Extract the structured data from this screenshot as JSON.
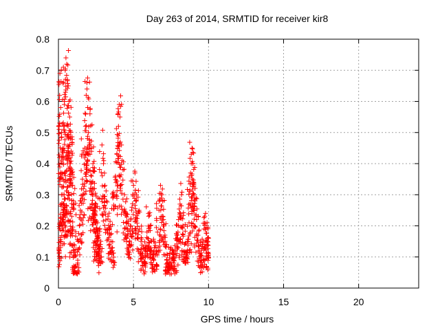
{
  "chart_data": {
    "type": "scatter",
    "title": "Day 263 of 2014, SRMTID for receiver kir8",
    "xlabel": "GPS time / hours",
    "ylabel": "SRMTID / TECUs",
    "xlim": [
      0,
      24
    ],
    "ylim": [
      0,
      0.8
    ],
    "xticks": [
      0,
      5,
      10,
      15,
      20
    ],
    "xtick_labels": [
      "0",
      "5",
      "10",
      "15",
      "20"
    ],
    "yticks": [
      0,
      0.1,
      0.2,
      0.3,
      0.4,
      0.5,
      0.6,
      0.7,
      0.8
    ],
    "ytick_labels": [
      "0",
      "0.1",
      "0.2",
      "0.3",
      "0.4",
      "0.5",
      "0.6",
      "0.7",
      "0.8"
    ],
    "grid": true,
    "marker": "+",
    "marker_color": "#ff0000",
    "x_data_range_note": "points span 0 to 10 hours",
    "series": [
      {
        "name": "SRMTID",
        "points": [
          [
            0.05,
            0.66
          ],
          [
            0.1,
            0.69
          ],
          [
            0.15,
            0.58
          ],
          [
            0.2,
            0.5
          ],
          [
            0.25,
            0.42
          ],
          [
            0.3,
            0.35
          ],
          [
            0.35,
            0.27
          ],
          [
            0.4,
            0.6
          ],
          [
            0.45,
            0.7
          ],
          [
            0.5,
            0.74
          ],
          [
            0.55,
            0.72
          ],
          [
            0.6,
            0.67
          ],
          [
            0.65,
            0.65
          ],
          [
            0.7,
            0.6
          ],
          [
            0.75,
            0.55
          ],
          [
            0.8,
            0.48
          ],
          [
            0.85,
            0.44
          ],
          [
            0.9,
            0.38
          ],
          [
            0.95,
            0.33
          ],
          [
            1.0,
            0.28
          ],
          [
            0.05,
            0.12
          ],
          [
            0.1,
            0.21
          ],
          [
            0.2,
            0.3
          ],
          [
            0.3,
            0.22
          ],
          [
            0.4,
            0.26
          ],
          [
            0.5,
            0.34
          ],
          [
            0.6,
            0.4
          ],
          [
            0.7,
            0.3
          ],
          [
            0.8,
            0.24
          ],
          [
            0.9,
            0.19
          ],
          [
            1.0,
            0.12
          ],
          [
            1.1,
            0.07
          ],
          [
            1.2,
            0.05
          ],
          [
            1.3,
            0.15
          ],
          [
            1.4,
            0.2
          ],
          [
            1.5,
            0.28
          ],
          [
            1.6,
            0.35
          ],
          [
            1.7,
            0.43
          ],
          [
            1.8,
            0.52
          ],
          [
            1.85,
            0.62
          ],
          [
            1.9,
            0.64
          ],
          [
            1.95,
            0.58
          ],
          [
            2.0,
            0.5
          ],
          [
            2.1,
            0.43
          ],
          [
            2.2,
            0.36
          ],
          [
            2.3,
            0.3
          ],
          [
            2.4,
            0.24
          ],
          [
            2.5,
            0.18
          ],
          [
            2.6,
            0.14
          ],
          [
            2.7,
            0.11
          ],
          [
            2.1,
            0.56
          ],
          [
            2.2,
            0.45
          ],
          [
            2.3,
            0.4
          ],
          [
            2.4,
            0.32
          ],
          [
            2.5,
            0.26
          ],
          [
            2.6,
            0.21
          ],
          [
            2.7,
            0.17
          ],
          [
            2.8,
            0.14
          ],
          [
            2.9,
            0.46
          ],
          [
            3.0,
            0.4
          ],
          [
            3.1,
            0.33
          ],
          [
            3.2,
            0.28
          ],
          [
            3.3,
            0.23
          ],
          [
            3.4,
            0.19
          ],
          [
            3.5,
            0.15
          ],
          [
            3.6,
            0.12
          ],
          [
            3.7,
            0.3
          ],
          [
            3.8,
            0.36
          ],
          [
            3.9,
            0.43
          ],
          [
            4.0,
            0.52
          ],
          [
            4.05,
            0.59
          ],
          [
            4.1,
            0.55
          ],
          [
            4.2,
            0.46
          ],
          [
            4.3,
            0.38
          ],
          [
            4.4,
            0.3
          ],
          [
            4.5,
            0.24
          ],
          [
            4.6,
            0.19
          ],
          [
            4.7,
            0.14
          ],
          [
            4.8,
            0.2
          ],
          [
            4.9,
            0.26
          ],
          [
            5.0,
            0.33
          ],
          [
            5.1,
            0.37
          ],
          [
            5.2,
            0.3
          ],
          [
            5.3,
            0.24
          ],
          [
            5.4,
            0.19
          ],
          [
            5.5,
            0.15
          ],
          [
            5.6,
            0.11
          ],
          [
            5.7,
            0.08
          ],
          [
            5.8,
            0.13
          ],
          [
            5.9,
            0.18
          ],
          [
            6.0,
            0.24
          ],
          [
            6.1,
            0.2
          ],
          [
            6.2,
            0.15
          ],
          [
            6.3,
            0.1
          ],
          [
            6.4,
            0.07
          ],
          [
            6.5,
            0.12
          ],
          [
            6.6,
            0.18
          ],
          [
            6.7,
            0.25
          ],
          [
            6.8,
            0.33
          ],
          [
            6.9,
            0.3
          ],
          [
            7.0,
            0.22
          ],
          [
            7.1,
            0.15
          ],
          [
            7.2,
            0.09
          ],
          [
            7.3,
            0.05
          ],
          [
            7.4,
            0.08
          ],
          [
            7.5,
            0.13
          ],
          [
            7.6,
            0.1
          ],
          [
            7.7,
            0.07
          ],
          [
            7.8,
            0.12
          ],
          [
            7.9,
            0.17
          ],
          [
            8.0,
            0.22
          ],
          [
            8.1,
            0.27
          ],
          [
            8.2,
            0.3
          ],
          [
            8.3,
            0.2
          ],
          [
            8.4,
            0.14
          ],
          [
            8.5,
            0.1
          ],
          [
            8.6,
            0.15
          ],
          [
            8.7,
            0.21
          ],
          [
            8.75,
            0.31
          ],
          [
            8.8,
            0.37
          ],
          [
            8.85,
            0.43
          ],
          [
            8.9,
            0.45
          ],
          [
            8.95,
            0.4
          ],
          [
            9.0,
            0.34
          ],
          [
            9.1,
            0.28
          ],
          [
            9.2,
            0.22
          ],
          [
            9.3,
            0.17
          ],
          [
            9.4,
            0.12
          ],
          [
            9.5,
            0.09
          ],
          [
            9.6,
            0.14
          ],
          [
            9.7,
            0.19
          ],
          [
            9.8,
            0.24
          ],
          [
            9.9,
            0.21
          ],
          [
            10.0,
            0.16
          ],
          [
            10.0,
            0.11
          ]
        ]
      }
    ]
  }
}
